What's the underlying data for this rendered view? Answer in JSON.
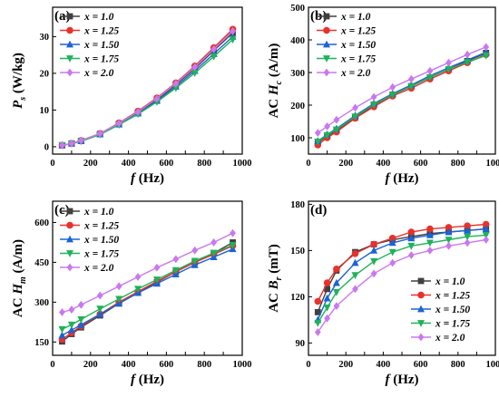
{
  "series_styles": [
    {
      "color": "#404040",
      "marker": "square"
    },
    {
      "color": "#e8312b",
      "marker": "circle"
    },
    {
      "color": "#1b63d6",
      "marker": "triangle-up"
    },
    {
      "color": "#1fb25a",
      "marker": "triangle-down"
    },
    {
      "color": "#c978f0",
      "marker": "diamond"
    }
  ],
  "chart_data": [
    {
      "type": "line",
      "panel_label": "(a)",
      "ylabel_main": "P",
      "ylabel_sub": "s",
      "ylabel_rest": " (W/kg)",
      "xlabel_main": "f",
      "xlabel_rest": " (Hz)",
      "xlim": [
        0,
        1000
      ],
      "ylim": [
        -2,
        38
      ],
      "xticks": [
        0,
        100,
        200,
        300,
        400,
        500,
        600,
        700,
        800,
        900,
        1000
      ],
      "yticks": [
        0,
        10,
        20,
        30
      ],
      "legend": "top-left",
      "x": [
        50,
        100,
        150,
        250,
        350,
        450,
        550,
        650,
        750,
        850,
        950
      ],
      "series": [
        {
          "name": "x = 1.0",
          "values": [
            0.4,
            0.9,
            1.6,
            3.5,
            6.3,
            9.3,
            12.8,
            16.9,
            21.3,
            26.2,
            31.0
          ]
        },
        {
          "name": "x = 1.25",
          "values": [
            0.4,
            0.9,
            1.7,
            3.6,
            6.5,
            9.7,
            13.3,
            17.4,
            22.0,
            27.0,
            32.0
          ]
        },
        {
          "name": "x = 1.50",
          "values": [
            0.4,
            0.9,
            1.6,
            3.4,
            6.1,
            9.1,
            12.5,
            16.4,
            20.7,
            25.3,
            30.0
          ]
        },
        {
          "name": "x = 1.75",
          "values": [
            0.4,
            0.8,
            1.5,
            3.3,
            6.0,
            8.9,
            12.2,
            16.0,
            20.1,
            24.6,
            29.2
          ]
        },
        {
          "name": "x = 2.0",
          "values": [
            0.4,
            0.9,
            1.7,
            3.6,
            6.4,
            9.5,
            13.1,
            17.2,
            21.7,
            26.6,
            31.5
          ]
        }
      ]
    },
    {
      "type": "line",
      "panel_label": "(b)",
      "ylabel_main": "AC H",
      "ylabel_sub": "c",
      "ylabel_rest": " (A/m)",
      "xlabel_main": "f",
      "xlabel_rest": " (Hz)",
      "xlim": [
        0,
        1000
      ],
      "ylim": [
        50,
        500
      ],
      "xticks": [
        0,
        100,
        200,
        300,
        400,
        500,
        600,
        700,
        800,
        900,
        1000
      ],
      "yticks": [
        100,
        200,
        300,
        400,
        500
      ],
      "legend": "top-left",
      "x": [
        50,
        100,
        150,
        250,
        350,
        450,
        550,
        650,
        750,
        850,
        950
      ],
      "series": [
        {
          "name": "x = 1.0",
          "values": [
            85,
            105,
            122,
            162,
            200,
            232,
            258,
            285,
            310,
            335,
            360
          ]
        },
        {
          "name": "x = 1.25",
          "values": [
            78,
            100,
            118,
            160,
            195,
            228,
            252,
            280,
            305,
            330,
            355
          ]
        },
        {
          "name": "x = 1.50",
          "values": [
            90,
            110,
            128,
            168,
            205,
            235,
            262,
            290,
            315,
            338,
            362
          ]
        },
        {
          "name": "x = 1.75",
          "values": [
            88,
            108,
            125,
            165,
            202,
            232,
            258,
            285,
            310,
            332,
            352
          ]
        },
        {
          "name": "x = 2.0",
          "values": [
            115,
            135,
            155,
            192,
            225,
            255,
            280,
            305,
            330,
            355,
            378
          ]
        }
      ]
    },
    {
      "type": "line",
      "panel_label": "(c)",
      "ylabel_main": "AC H",
      "ylabel_sub": "m",
      "ylabel_rest": " (A/m)",
      "xlabel_main": "f",
      "xlabel_rest": " (Hz)",
      "xlim": [
        0,
        1000
      ],
      "ylim": [
        100,
        680
      ],
      "xticks": [
        0,
        100,
        200,
        300,
        400,
        500,
        600,
        700,
        800,
        900,
        1000
      ],
      "yticks": [
        150,
        300,
        450,
        600
      ],
      "legend": "top-left",
      "x": [
        50,
        100,
        150,
        250,
        350,
        450,
        550,
        650,
        750,
        850,
        950
      ],
      "series": [
        {
          "name": "x = 1.0",
          "values": [
            152,
            180,
            205,
            250,
            295,
            335,
            375,
            415,
            450,
            485,
            525
          ]
        },
        {
          "name": "x = 1.25",
          "values": [
            160,
            185,
            210,
            255,
            300,
            340,
            378,
            415,
            450,
            480,
            512
          ]
        },
        {
          "name": "x = 1.50",
          "values": [
            175,
            195,
            215,
            255,
            295,
            335,
            370,
            405,
            440,
            470,
            500
          ]
        },
        {
          "name": "x = 1.75",
          "values": [
            198,
            215,
            235,
            275,
            312,
            350,
            385,
            420,
            455,
            485,
            515
          ]
        },
        {
          "name": "x = 2.0",
          "values": [
            262,
            272,
            290,
            325,
            360,
            395,
            430,
            462,
            495,
            525,
            560
          ]
        }
      ]
    },
    {
      "type": "line",
      "panel_label": "(d)",
      "ylabel_main": "AC B",
      "ylabel_sub": "r",
      "ylabel_rest": " (mT)",
      "xlabel_main": "f",
      "xlabel_rest": " (Hz)",
      "xlim": [
        0,
        1000
      ],
      "ylim": [
        82,
        182
      ],
      "xticks": [
        0,
        100,
        200,
        300,
        400,
        500,
        600,
        700,
        800,
        900,
        1000
      ],
      "yticks": [
        90,
        120,
        150,
        180
      ],
      "legend": "bottom-right",
      "x": [
        50,
        100,
        150,
        250,
        350,
        450,
        550,
        650,
        750,
        850,
        950
      ],
      "series": [
        {
          "name": "x = 1.0",
          "values": [
            110,
            125,
            137,
            149,
            154,
            157,
            159,
            161,
            162,
            163,
            164
          ]
        },
        {
          "name": "x = 1.25",
          "values": [
            117,
            129,
            138,
            148,
            154,
            158,
            162,
            164,
            165,
            166,
            167
          ]
        },
        {
          "name": "x = 1.50",
          "values": [
            105,
            119,
            129,
            142,
            150,
            155,
            158,
            160,
            162,
            163,
            164
          ]
        },
        {
          "name": "x = 1.75",
          "values": [
            103,
            113,
            123,
            134,
            143,
            149,
            153,
            155,
            157,
            159,
            160
          ]
        },
        {
          "name": "x = 2.0",
          "values": [
            97,
            106,
            114,
            125,
            135,
            142,
            147,
            150,
            153,
            155,
            157
          ]
        }
      ]
    }
  ]
}
